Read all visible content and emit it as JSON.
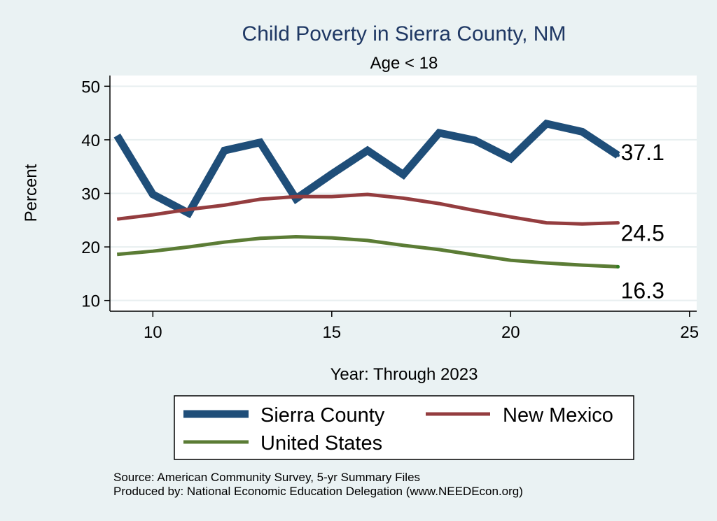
{
  "chart_data": {
    "type": "line",
    "title": "Child Poverty in Sierra County, NM",
    "subtitle": "Age < 18",
    "xlabel": "Year: Through 2023",
    "ylabel": "Percent",
    "xlim": [
      8.8,
      25.2
    ],
    "ylim": [
      8,
      52
    ],
    "xticks": [
      10,
      15,
      20,
      25
    ],
    "yticks": [
      10,
      20,
      30,
      40,
      50
    ],
    "x": [
      9,
      10,
      11,
      12,
      13,
      14,
      15,
      16,
      17,
      18,
      19,
      20,
      21,
      22,
      23
    ],
    "series": [
      {
        "name": "Sierra County",
        "color": "#1f4e79",
        "values": [
          40.8,
          29.8,
          26.3,
          38.0,
          39.5,
          29.0,
          33.6,
          38.0,
          33.5,
          41.3,
          39.9,
          36.5,
          43.0,
          41.5,
          37.1
        ],
        "end_label": "37.1"
      },
      {
        "name": "New Mexico",
        "color": "#943d3f",
        "values": [
          25.2,
          26.0,
          27.0,
          27.8,
          28.9,
          29.4,
          29.4,
          29.8,
          29.1,
          28.1,
          26.8,
          25.6,
          24.5,
          24.3,
          24.5
        ],
        "end_label": "24.5"
      },
      {
        "name": "United States",
        "color": "#5b7c35",
        "values": [
          18.6,
          19.2,
          20.0,
          20.9,
          21.6,
          21.9,
          21.7,
          21.2,
          20.3,
          19.5,
          18.5,
          17.5,
          17.0,
          16.6,
          16.3
        ],
        "end_label": "16.3"
      }
    ],
    "legend": {
      "position": "bottom",
      "entries": [
        "Sierra County",
        "New Mexico",
        "United States"
      ]
    },
    "notes": [
      "Source: American Community Survey, 5-yr Summary Files",
      "Produced by: National Economic Education Delegation (www.NEEDEcon.org)"
    ],
    "background": "#eaf2f3",
    "plot_background": "#ffffff",
    "title_color": "#1f3864"
  }
}
